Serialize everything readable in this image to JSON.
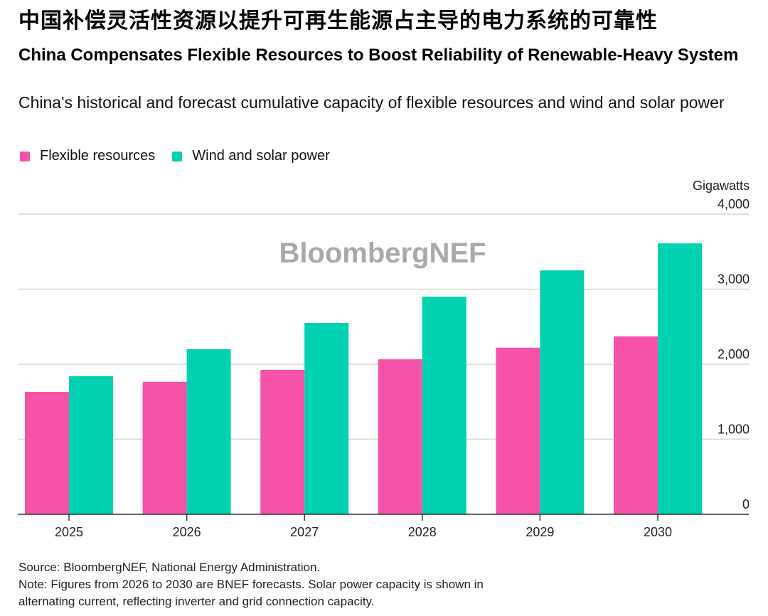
{
  "header": {
    "chinese_title": "中国补偿灵活性资源以提升可再生能源占主导的电力系统的可靠性"
  },
  "chart_data": {
    "type": "bar",
    "title": "China Compensates Flexible Resources to Boost Reliability of Renewable-Heavy System",
    "subtitle": "China's historical and forecast cumulative capacity of flexible resources and wind and solar power",
    "xlabel": "",
    "ylabel": "Gigawatts",
    "ylim": [
      0,
      4000
    ],
    "yticks": [
      0,
      1000,
      2000,
      3000,
      4000
    ],
    "ytick_labels": [
      "0",
      "1,000",
      "2,000",
      "3,000",
      "4,000"
    ],
    "grid": true,
    "y_axis_side": "right",
    "legend_position": "top-left",
    "categories": [
      "2025",
      "2026",
      "2027",
      "2028",
      "2029",
      "2030"
    ],
    "series": [
      {
        "name": "Flexible resources",
        "color": "#F552A8",
        "values": [
          1630,
          1765,
          1925,
          2065,
          2220,
          2370
        ]
      },
      {
        "name": "Wind and solar power",
        "color": "#00D1B0",
        "values": [
          1840,
          2200,
          2550,
          2900,
          3250,
          3610
        ]
      }
    ],
    "watermark": "BloombergNEF"
  },
  "footer": {
    "source": "Source: BloombergNEF, National Energy Administration.",
    "note_line1": "Note: Figures from 2026 to 2030 are BNEF forecasts. Solar power capacity is shown in",
    "note_line2": "alternating current, reflecting inverter and grid connection capacity."
  }
}
